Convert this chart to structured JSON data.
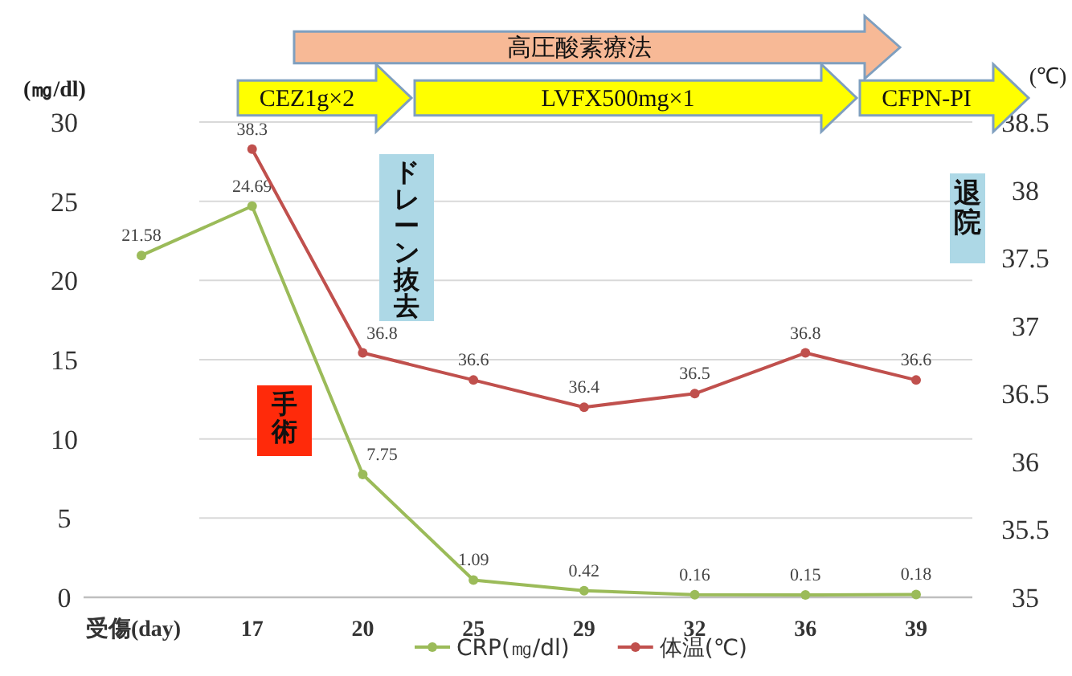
{
  "chart_data": {
    "type": "line",
    "categories": [
      "受傷(day)",
      "17",
      "20",
      "25",
      "29",
      "32",
      "36",
      "39"
    ],
    "series": [
      {
        "name": "CRP(㎎/dl)",
        "color": "#9bbb59",
        "values": [
          21.58,
          24.69,
          7.75,
          1.09,
          0.42,
          0.16,
          0.15,
          0.18
        ]
      },
      {
        "name": "体温(℃)",
        "color": "#c0504d",
        "axis": "y2",
        "values": [
          null,
          38.3,
          36.8,
          36.6,
          36.4,
          36.5,
          36.8,
          36.6
        ]
      }
    ],
    "ylabel": "(㎎/dl)",
    "y2label": "(℃)",
    "ylim": [
      0,
      30
    ],
    "yticks": [
      0,
      5,
      10,
      15,
      20,
      25,
      30
    ],
    "y2lim": [
      35,
      38.5
    ],
    "y2ticks": [
      35,
      35.5,
      36,
      36.5,
      37,
      37.5,
      38,
      38.5
    ],
    "grid": "y",
    "legend": "bottom",
    "marker": "circle",
    "data_labels": true,
    "annotations": [
      "高圧酸素療法",
      "CEZ1g×2",
      "LVFX500mg×1",
      "CFPN-PI",
      "ドレーン抜去",
      "手術",
      "退院"
    ]
  }
}
